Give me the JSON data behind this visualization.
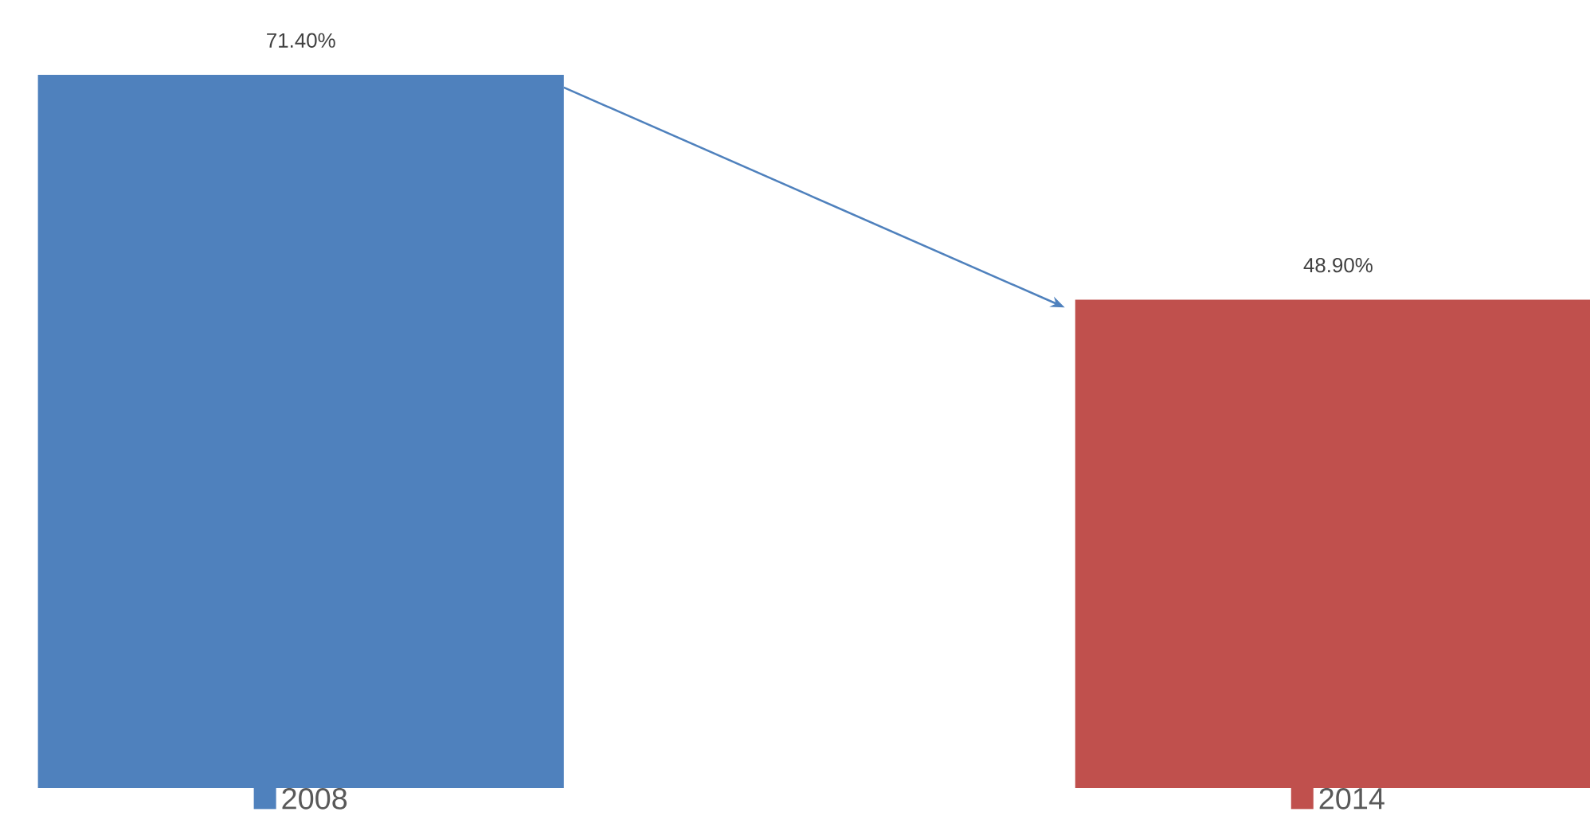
{
  "chart_data": {
    "type": "bar",
    "categories": [
      "2008",
      "2014"
    ],
    "values": [
      71.4,
      48.9
    ],
    "colors": [
      "#4f81bd",
      "#c0504d"
    ],
    "value_labels": [
      "71.40%",
      "48.90%"
    ]
  }
}
